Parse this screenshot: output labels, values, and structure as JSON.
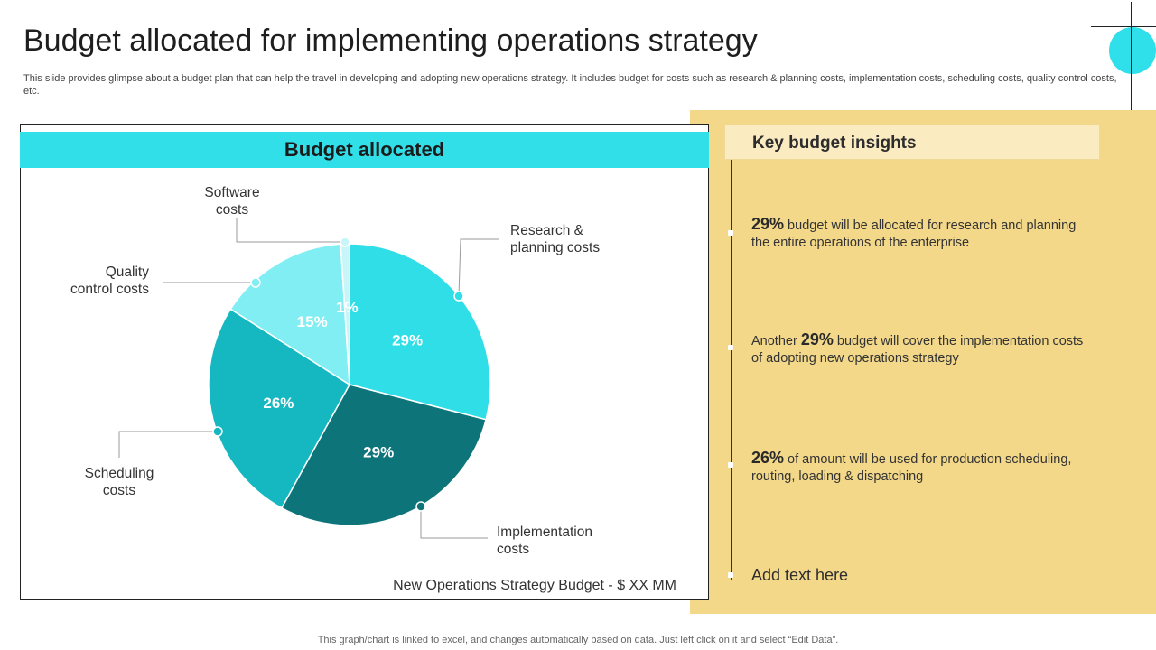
{
  "page": {
    "title": "Budget allocated for implementing operations strategy",
    "subtitle": "This slide provides glimpse about a budget plan that can help the travel in developing and adopting new operations strategy. It includes budget for costs such as research & planning costs, implementation costs, scheduling costs, quality control costs, etc.",
    "bottom_note": "This graph/chart is linked to excel,  and changes automatically based on data. Just left click on it and select “Edit Data”."
  },
  "chart_panel": {
    "header": "Budget allocated",
    "footnote": "New Operations Strategy Budget - $ XX MM"
  },
  "chart_data": {
    "type": "pie",
    "slices": [
      {
        "label_lines": [
          "Research &",
          "planning costs"
        ],
        "value": 29,
        "value_label": "29%",
        "color": "#30dee7"
      },
      {
        "label_lines": [
          "Implementation",
          "costs"
        ],
        "value": 29,
        "value_label": "29%",
        "color": "#0d747a"
      },
      {
        "label_lines": [
          "Scheduling",
          "costs"
        ],
        "value": 26,
        "value_label": "26%",
        "color": "#15b8c1"
      },
      {
        "label_lines": [
          "Quality",
          "control costs"
        ],
        "value": 15,
        "value_label": "15%",
        "color": "#80eef2"
      },
      {
        "label_lines": [
          "Software",
          "costs"
        ],
        "value": 1,
        "value_label": "1%",
        "color": "#c8f6f8"
      }
    ]
  },
  "insights": {
    "header": "Key budget insights",
    "items": [
      {
        "prefix": "",
        "pct": "29%",
        "text": " budget will be allocated for research and planning the entire operations of the enterprise"
      },
      {
        "prefix": "Another ",
        "pct": "29%",
        "text": " budget will cover the implementation costs of adopting new operations strategy"
      },
      {
        "prefix": "",
        "pct": "26%",
        "text": " of amount  will be used for production scheduling,  routing,  loading & dispatching"
      }
    ],
    "add_text": "Add text here"
  },
  "colors": {
    "accent_cyan": "#30dfe8",
    "panel_yellow": "#f3d88a",
    "insight_header_bg": "#faebc1"
  }
}
